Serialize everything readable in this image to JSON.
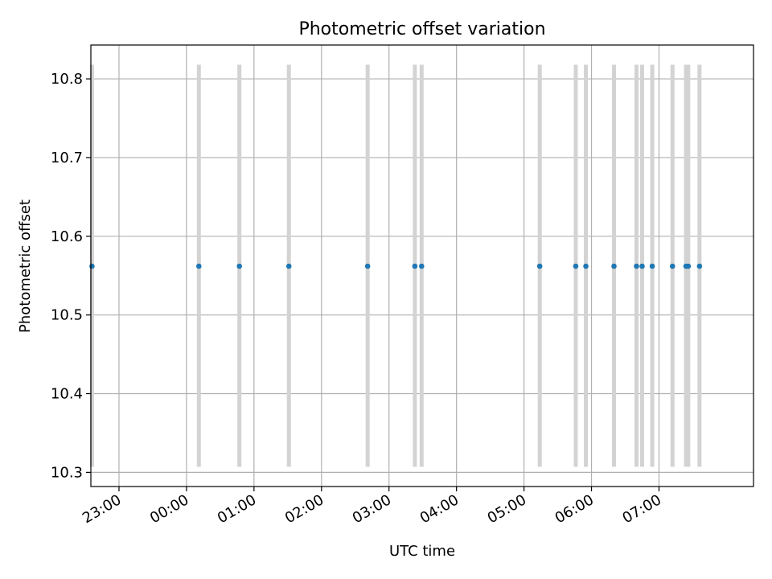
{
  "chart_data": {
    "type": "scatter",
    "title": "Photometric offset variation",
    "xlabel": "UTC time",
    "ylabel": "Photometric offset",
    "x_axis_type": "time",
    "xlim": [
      "22:35",
      "08:24"
    ],
    "ylim": [
      10.282,
      10.843
    ],
    "grid": true,
    "x_ticks": [
      "23:00",
      "00:00",
      "01:00",
      "02:00",
      "03:00",
      "04:00",
      "05:00",
      "06:00",
      "07:00"
    ],
    "y_ticks": [
      "10.3",
      "10.4",
      "10.5",
      "10.6",
      "10.7",
      "10.8"
    ],
    "colors": {
      "points": "#1f77b4",
      "error_bars": "#d3d3d3",
      "grid": "#b0b0b0"
    },
    "series": [
      {
        "x": [
          "22:36",
          "00:11",
          "00:47",
          "01:31",
          "02:41",
          "03:23",
          "03:29",
          "05:14",
          "05:46",
          "05:55",
          "06:20",
          "06:40",
          "06:45",
          "06:54",
          "07:12",
          "07:24",
          "07:26",
          "07:36"
        ],
        "y": [
          10.562,
          10.562,
          10.562,
          10.562,
          10.562,
          10.562,
          10.562,
          10.562,
          10.562,
          10.562,
          10.562,
          10.562,
          10.562,
          10.562,
          10.562,
          10.562,
          10.562,
          10.562
        ],
        "error_low": [
          10.307,
          10.307,
          10.307,
          10.307,
          10.307,
          10.307,
          10.307,
          10.307,
          10.307,
          10.307,
          10.307,
          10.307,
          10.307,
          10.307,
          10.307,
          10.307,
          10.307,
          10.307
        ],
        "error_high": [
          10.818,
          10.818,
          10.818,
          10.818,
          10.818,
          10.818,
          10.818,
          10.818,
          10.818,
          10.818,
          10.818,
          10.818,
          10.818,
          10.818,
          10.818,
          10.818,
          10.818,
          10.818
        ]
      }
    ]
  }
}
